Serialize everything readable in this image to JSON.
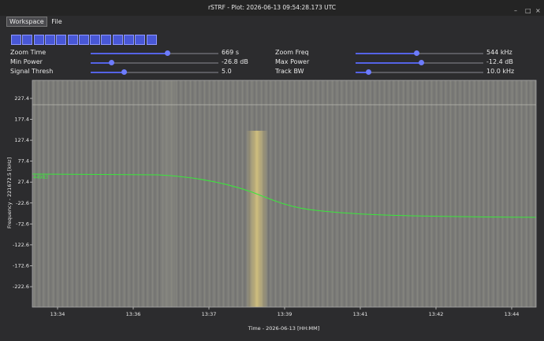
{
  "window": {
    "title": "rSTRF - Plot: 2026-06-13 09:54:28.173 UTC"
  },
  "menu": [
    "Workspace",
    "File"
  ],
  "controls": [
    {
      "label": "Zoom Time",
      "value": "669 s"
    },
    {
      "label": "Min Power",
      "value": "-26.8 dB"
    },
    {
      "label": "Signal Thresh",
      "value": "5.0"
    },
    {
      "label": "Zoom Freq",
      "value": "544 kHz"
    },
    {
      "label": "Max Power",
      "value": "-12.4 dB"
    },
    {
      "label": "Track BW",
      "value": "10.0 kHz"
    }
  ],
  "plot": {
    "ylabel": "Frequency - 221672.5 [kHz]",
    "xlabel": "Time - 2026-06-13 [HH:MM]",
    "ylim": [
      -271.5,
      270.6
    ],
    "yticks": [
      227.4,
      177.4,
      127.4,
      77.4,
      27.4,
      -22.6,
      -72.6,
      -122.6,
      -172.6,
      -222.6
    ],
    "xticks": [
      "13:34",
      "13:36",
      "13:37",
      "13:39",
      "13:41",
      "13:42",
      "13:44"
    ],
    "track_label": "44983"
  }
}
